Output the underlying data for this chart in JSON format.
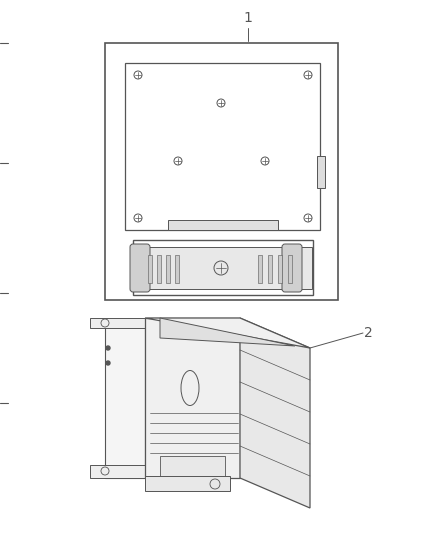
{
  "background_color": "#ffffff",
  "line_color": "#555555",
  "part1_label": "1",
  "part2_label": "2",
  "fig_width": 4.38,
  "fig_height": 5.33,
  "dpi": 100
}
